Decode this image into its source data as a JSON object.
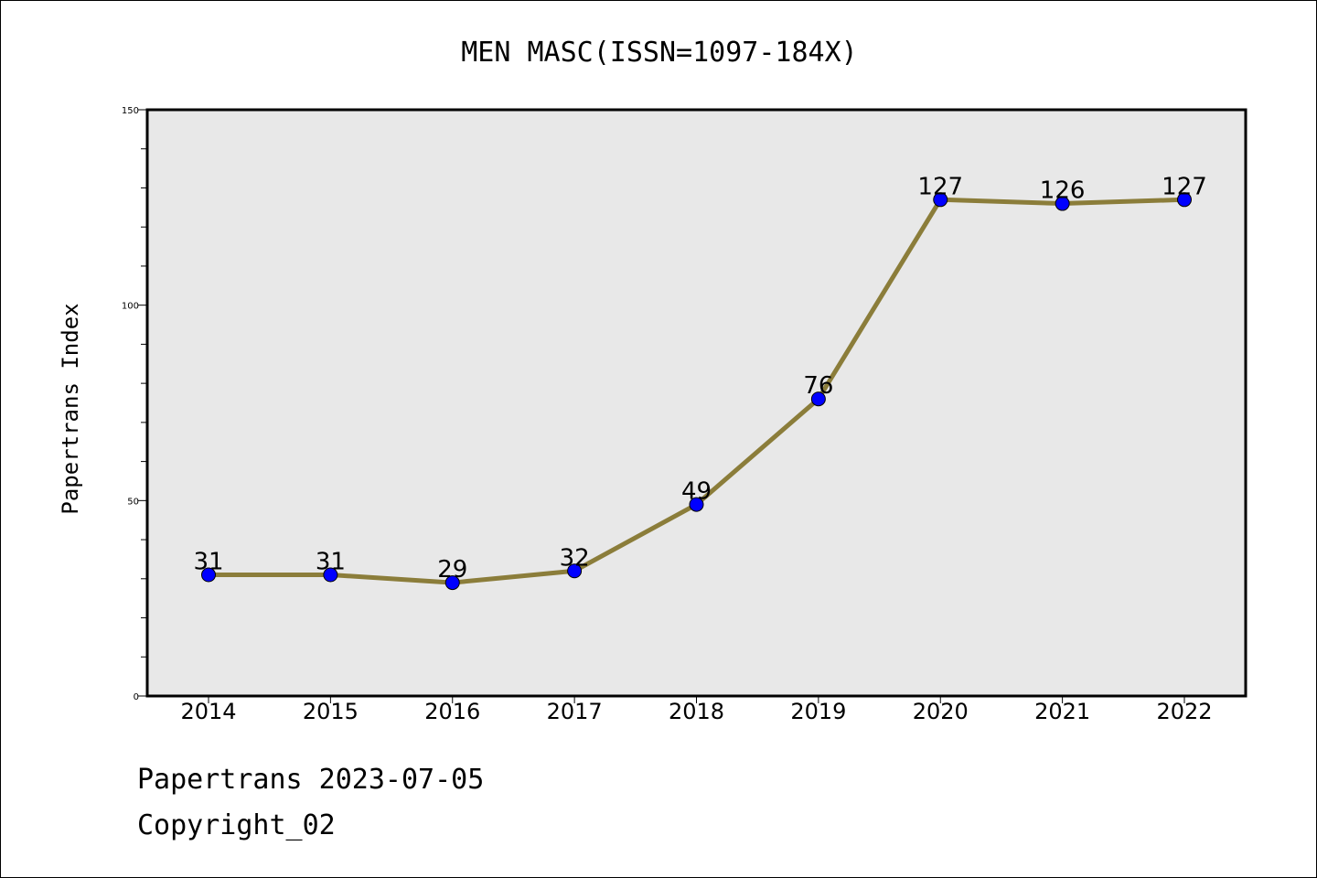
{
  "chart_data": {
    "type": "line",
    "title": "MEN MASC(ISSN=1097-184X)",
    "ylabel": "Papertrans Index",
    "xlabel": "",
    "categories": [
      "2014",
      "2015",
      "2016",
      "2017",
      "2018",
      "2019",
      "2020",
      "2021",
      "2022"
    ],
    "values": [
      31,
      31,
      29,
      32,
      49,
      76,
      127,
      126,
      127
    ],
    "data_labels": [
      "31",
      "31",
      "29",
      "32",
      "49",
      "76",
      "127",
      "126",
      "127"
    ],
    "ylim": [
      0,
      150
    ],
    "yticks": [
      0,
      50,
      100,
      150
    ],
    "ytick_labels": [
      "0",
      "50",
      "100",
      "150"
    ],
    "grid": false,
    "legend": "none",
    "colors": {
      "line": "#8b7d3a",
      "marker": "#0000ff",
      "plot_background": "#e8e8e8"
    }
  },
  "footer": {
    "line1": "Papertrans 2023-07-05",
    "line2": "Copyright_02"
  }
}
